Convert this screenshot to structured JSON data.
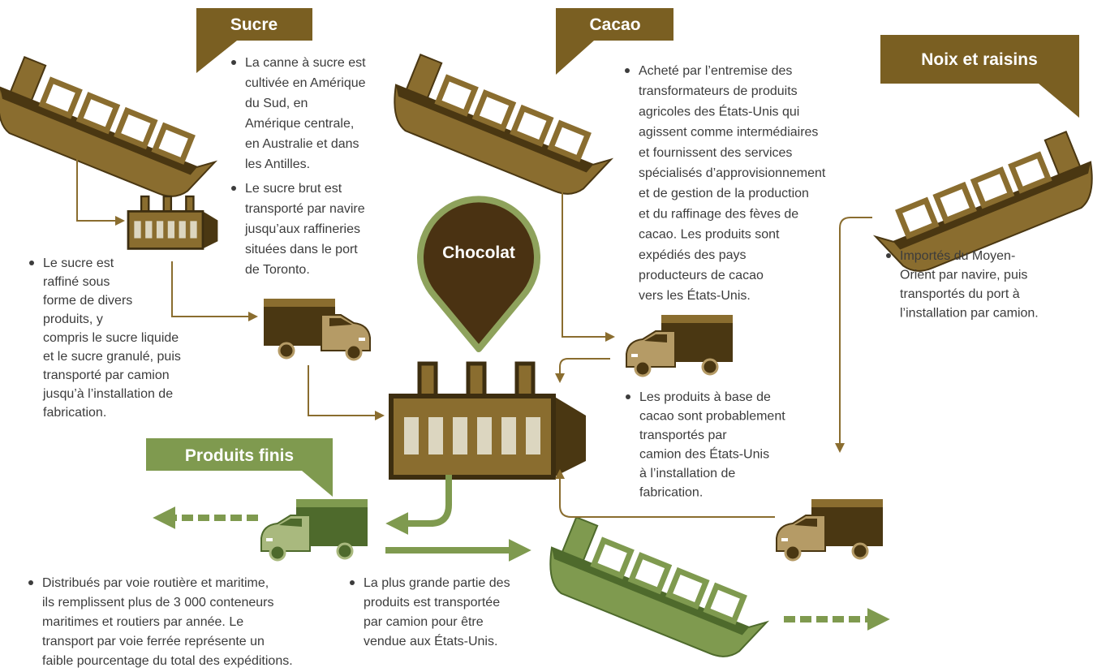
{
  "labels": {
    "sucre": "Sucre",
    "cacao": "Cacao",
    "noix": "Noix et raisins",
    "chocolat": "Chocolat",
    "produits": "Produits finis"
  },
  "notes": [
    {
      "lines": [
        "La canne à sucre est",
        "cultivée en Amérique",
        "du Sud, en",
        "Amérique centrale,",
        "en Australie et dans",
        "les Antilles."
      ]
    },
    {
      "lines": [
        "Le sucre brut est",
        "transporté par navire",
        "jusqu’aux raffineries",
        "situées dans le port",
        " de Toronto."
      ]
    },
    {
      "lines": [
        "Le sucre est",
        "raffiné sous",
        "forme de divers",
        "produits, y",
        "compris le sucre liquide",
        "et le sucre granulé, puis",
        "transporté par camion",
        "jusqu’à l’installation de",
        "fabrication."
      ]
    },
    {
      "lines": [
        "Acheté par l’entremise des",
        "transformateurs de produits",
        "agricoles des États-Unis qui",
        "agissent comme intermédiaires",
        "et fournissent des services",
        "spécialisés d’approvisionnement",
        "et de gestion de la production",
        "et du raffinage des fèves de",
        "cacao. Les produits sont",
        "expédiés des pays",
        "producteurs de cacao",
        "vers les États-Unis."
      ]
    },
    {
      "lines": [
        "Les produits à base de",
        "cacao sont probablement",
        "transportés par",
        "camion des États-Unis",
        "à l’installation de",
        "fabrication."
      ]
    },
    {
      "lines": [
        "Importés du Moyen-",
        "Orient par navire, puis",
        "transportés du port à",
        "l’installation par camion."
      ]
    },
    {
      "lines": [
        "Distribués par voie routière et maritime,",
        "ils remplissent plus de 3 000 conteneurs",
        "maritimes et routiers par année. Le",
        "transport par voie ferrée représente un",
        "faible pourcentage du total des expéditions."
      ]
    },
    {
      "lines": [
        "La plus grande partie des",
        "produits est transportée",
        "par camion pour être",
        "vendue aux États-Unis."
      ]
    }
  ]
}
